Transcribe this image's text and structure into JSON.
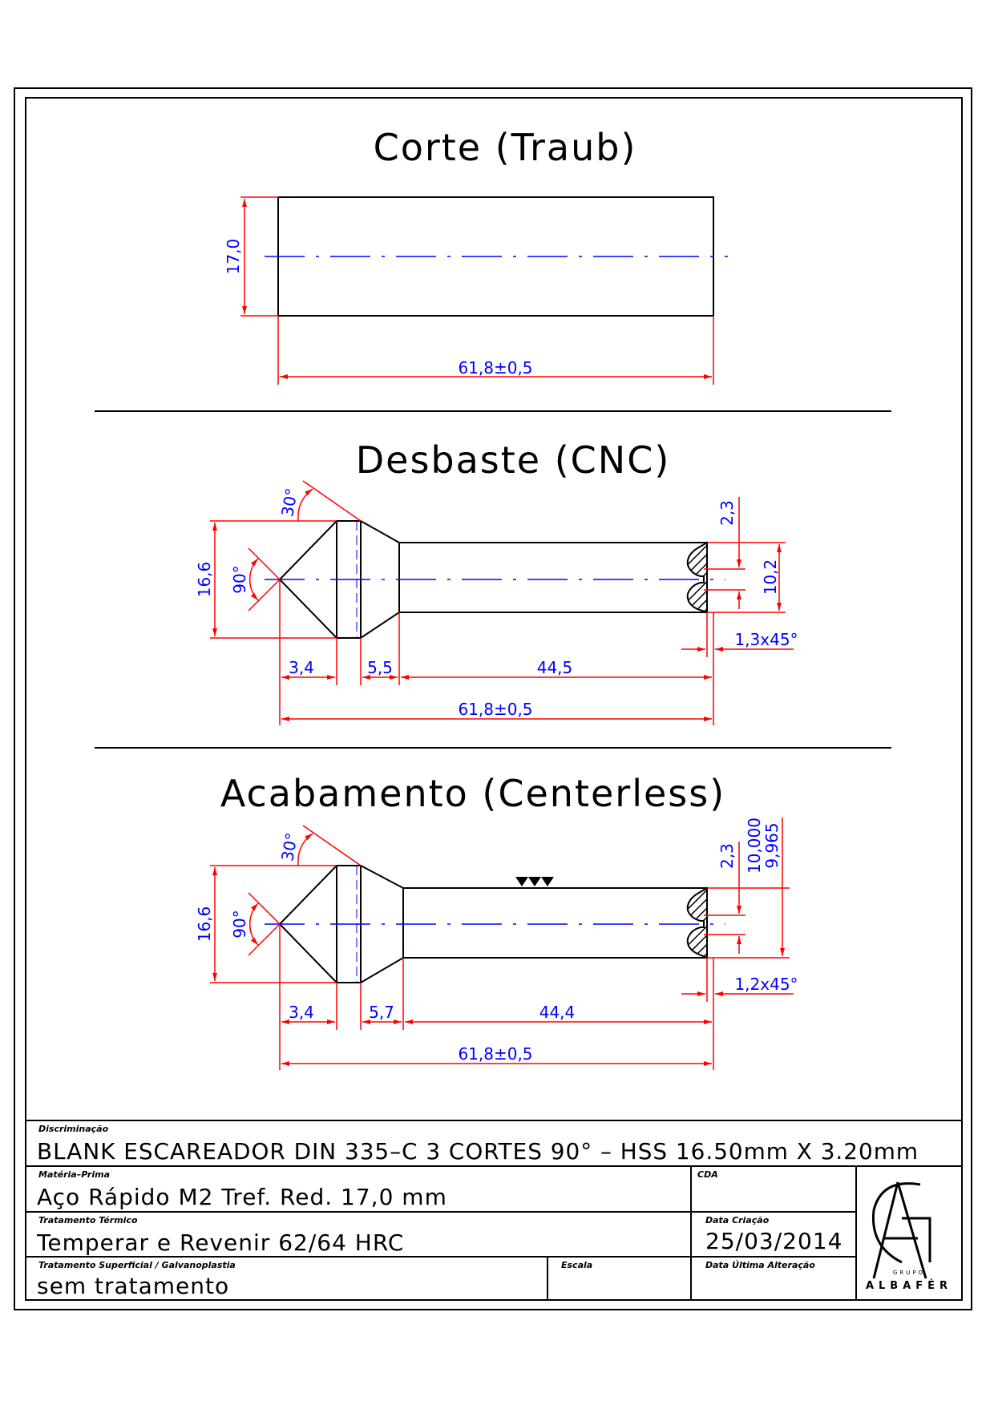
{
  "sections": [
    {
      "title": "Corte (Traub)",
      "dims": {
        "diameter": "17,0",
        "length": "61,8±0,5"
      }
    },
    {
      "title": "Desbaste (CNC)",
      "dims": {
        "angle_top": "30°",
        "angle_tip": "90°",
        "diameter": "16,6",
        "seg1": "3,4",
        "seg2": "5,5",
        "seg3": "44,5",
        "length": "61,8±0,5",
        "hole_top": "2,3",
        "hole_dia": "10,2",
        "chamfer": "1,3x45°"
      }
    },
    {
      "title": "Acabamento (Centerless)",
      "dims": {
        "angle_top": "30°",
        "angle_tip": "90°",
        "diameter": "16,6",
        "seg1": "3,4",
        "seg2": "5,7",
        "seg3": "44,4",
        "length": "61,8±0,5",
        "hole_top": "2,3",
        "tol_max": "10,000",
        "tol_min": "9,965",
        "chamfer": "1,2x45°"
      }
    }
  ],
  "title_block": {
    "discriminacao_label": "Discriminação",
    "discriminacao": "BLANK ESCAREADOR DIN 335–C 3 CORTES 90° – HSS 16.50mm X 3.20mm",
    "materia_prima_label": "Matéria–Prima",
    "materia_prima": "Aço Rápido M2 Tref. Red. 17,0 mm",
    "cda_label": "CDA",
    "tratamento_termico_label": "Tratamento Térmico",
    "tratamento_termico": "Temperar e Revenir 62/64 HRC",
    "data_criacao_label": "Data Criação",
    "data_criacao": "25/03/2014",
    "tratamento_superficial_label": "Tratamento Superficial / Galvanoplastia",
    "tratamento_superficial": "sem tratamento",
    "escala_label": "Escala",
    "data_alteracao_label": "Data Última Alteração",
    "logo_text": "ALBAFÉR",
    "logo_sub": "GRUPO"
  },
  "colors": {
    "outline": "#000000",
    "dimension": "#ff0000",
    "text_dim": "#0000ff",
    "centerline": "#0000ff"
  }
}
